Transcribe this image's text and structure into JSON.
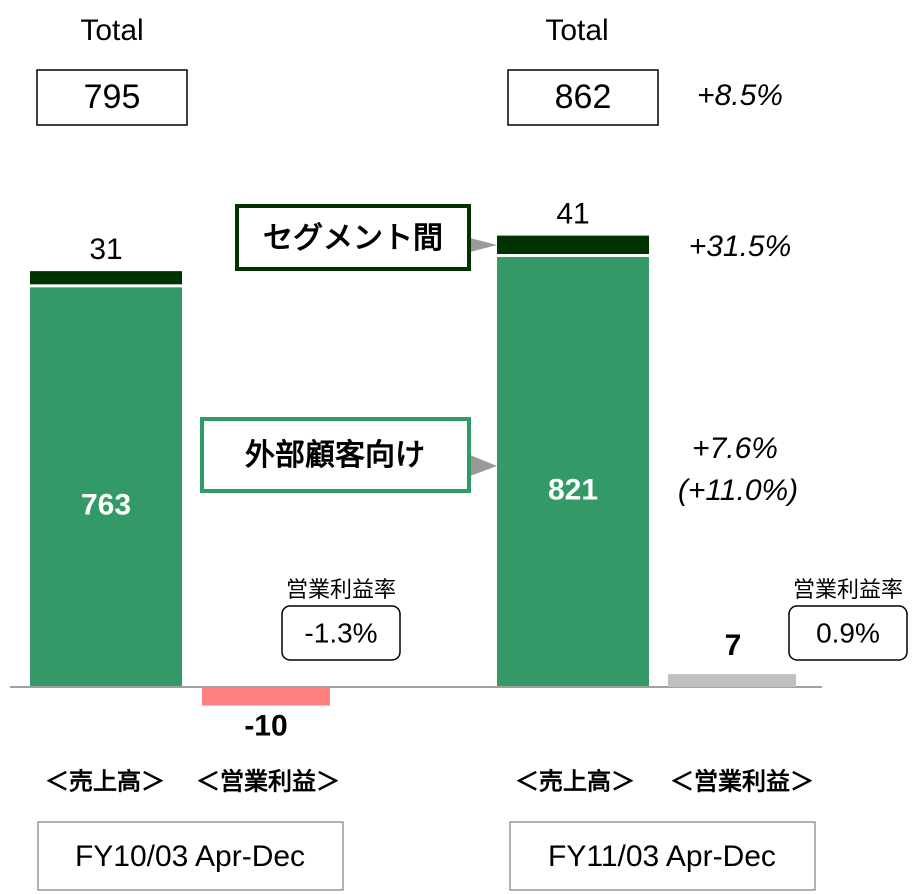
{
  "chart_data": {
    "type": "bar",
    "categories": [
      "FY10/03 Apr-Dec",
      "FY11/03 Apr-Dec"
    ],
    "group_labels": [
      "＜売上高＞",
      "＜営業利益＞"
    ],
    "series": [
      {
        "name": "外部顧客向け",
        "color": "#339966",
        "values": [
          763,
          821
        ]
      },
      {
        "name": "セグメント間",
        "color": "#003300",
        "values": [
          31,
          41
        ]
      },
      {
        "name": "＜営業利益＞",
        "colors": [
          "#ff8080",
          "#c0c0c0"
        ],
        "values": [
          -10,
          7
        ],
        "axis": "y2"
      }
    ],
    "totals": {
      "label": "Total",
      "values": [
        795,
        862
      ],
      "change": "+8.5%"
    },
    "changes": {
      "inter_segment": "+31.5%",
      "external": "+7.6%",
      "external_alt": "(+11.0%)"
    },
    "margin": {
      "label": "営業利益率",
      "values": [
        -1.3,
        0.9
      ],
      "value_labels": [
        "-1.3%",
        "0.9%"
      ]
    },
    "ylim": [
      -80,
      1000
    ],
    "y2lim": [
      -22,
      283
    ]
  }
}
